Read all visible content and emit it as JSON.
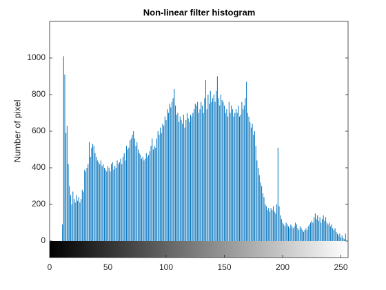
{
  "chart_data": {
    "type": "histogram",
    "title": "Non-linear filter histogram",
    "y_label": "Number of pixel",
    "color": "#0072bd",
    "x": [
      0,
      1,
      2,
      3,
      4,
      5,
      6,
      7,
      8,
      9,
      10,
      11,
      12,
      13,
      14,
      15,
      16,
      17,
      18,
      19,
      20,
      21,
      22,
      23,
      24,
      25,
      26,
      27,
      28,
      29,
      30,
      31,
      32,
      33,
      34,
      35,
      36,
      37,
      38,
      39,
      40,
      41,
      42,
      43,
      44,
      45,
      46,
      47,
      48,
      49,
      50,
      51,
      52,
      53,
      54,
      55,
      56,
      57,
      58,
      59,
      60,
      61,
      62,
      63,
      64,
      65,
      66,
      67,
      68,
      69,
      70,
      71,
      72,
      73,
      74,
      75,
      76,
      77,
      78,
      79,
      80,
      81,
      82,
      83,
      84,
      85,
      86,
      87,
      88,
      89,
      90,
      91,
      92,
      93,
      94,
      95,
      96,
      97,
      98,
      99,
      100,
      101,
      102,
      103,
      104,
      105,
      106,
      107,
      108,
      109,
      110,
      111,
      112,
      113,
      114,
      115,
      116,
      117,
      118,
      119,
      120,
      121,
      122,
      123,
      124,
      125,
      126,
      127,
      128,
      129,
      130,
      131,
      132,
      133,
      134,
      135,
      136,
      137,
      138,
      139,
      140,
      141,
      142,
      143,
      144,
      145,
      146,
      147,
      148,
      149,
      150,
      151,
      152,
      153,
      154,
      155,
      156,
      157,
      158,
      159,
      160,
      161,
      162,
      163,
      164,
      165,
      166,
      167,
      168,
      169,
      170,
      171,
      172,
      173,
      174,
      175,
      176,
      177,
      178,
      179,
      180,
      181,
      182,
      183,
      184,
      185,
      186,
      187,
      188,
      189,
      190,
      191,
      192,
      193,
      194,
      195,
      196,
      197,
      198,
      199,
      200,
      201,
      202,
      203,
      204,
      205,
      206,
      207,
      208,
      209,
      210,
      211,
      212,
      213,
      214,
      215,
      216,
      217,
      218,
      219,
      220,
      221,
      222,
      223,
      224,
      225,
      226,
      227,
      228,
      229,
      230,
      231,
      232,
      233,
      234,
      235,
      236,
      237,
      238,
      239,
      240,
      241,
      242,
      243,
      244,
      245,
      246,
      247,
      248,
      249,
      250,
      251,
      252,
      253,
      254,
      255
    ],
    "values": [
      0,
      0,
      0,
      0,
      0,
      0,
      0,
      0,
      0,
      0,
      0,
      90,
      1010,
      910,
      590,
      630,
      420,
      300,
      250,
      200,
      270,
      230,
      210,
      250,
      220,
      240,
      210,
      230,
      280,
      270,
      390,
      380,
      400,
      420,
      540,
      460,
      510,
      530,
      520,
      480,
      460,
      440,
      430,
      420,
      440,
      410,
      420,
      400,
      390,
      380,
      410,
      400,
      380,
      420,
      430,
      390,
      410,
      400,
      440,
      420,
      430,
      450,
      420,
      460,
      480,
      440,
      520,
      500,
      510,
      550,
      560,
      580,
      600,
      560,
      520,
      540,
      500,
      480,
      470,
      450,
      460,
      440,
      450,
      480,
      460,
      470,
      490,
      520,
      560,
      500,
      520,
      510,
      560,
      600,
      580,
      620,
      590,
      640,
      630,
      680,
      660,
      720,
      700,
      750,
      730,
      760,
      780,
      830,
      740,
      690,
      700,
      650,
      680,
      660,
      640,
      690,
      620,
      660,
      700,
      670,
      650,
      690,
      680,
      700,
      720,
      750,
      740,
      760,
      700,
      720,
      760,
      740,
      700,
      780,
      880,
      720,
      800,
      750,
      820,
      760,
      780,
      800,
      760,
      820,
      900,
      780,
      740,
      800,
      770,
      760,
      740,
      700,
      720,
      680,
      760,
      700,
      740,
      720,
      680,
      700,
      720,
      700,
      740,
      680,
      690,
      760,
      720,
      740,
      780,
      870,
      700,
      680,
      650,
      620,
      640,
      580,
      600,
      520,
      440,
      400,
      360,
      320,
      300,
      260,
      240,
      200,
      190,
      170,
      180,
      160,
      180,
      170,
      190,
      160,
      150,
      200,
      510,
      190,
      140,
      120,
      100,
      90,
      80,
      100,
      90,
      80,
      70,
      90,
      80,
      70,
      80,
      100,
      90,
      70,
      60,
      80,
      70,
      60,
      50,
      60,
      70,
      60,
      80,
      90,
      100,
      110,
      100,
      130,
      150,
      120,
      140,
      110,
      130,
      100,
      120,
      140,
      110,
      130,
      100,
      90,
      100,
      80,
      90,
      70,
      60,
      70,
      50,
      40,
      30,
      40,
      20,
      30,
      15,
      10,
      40,
      0
    ],
    "xlim": [
      0,
      255
    ],
    "xticks": [
      0,
      50,
      100,
      150,
      200,
      250
    ],
    "ylim": [
      0,
      1200
    ],
    "yticks": [
      0,
      200,
      400,
      600,
      800,
      1000
    ]
  }
}
